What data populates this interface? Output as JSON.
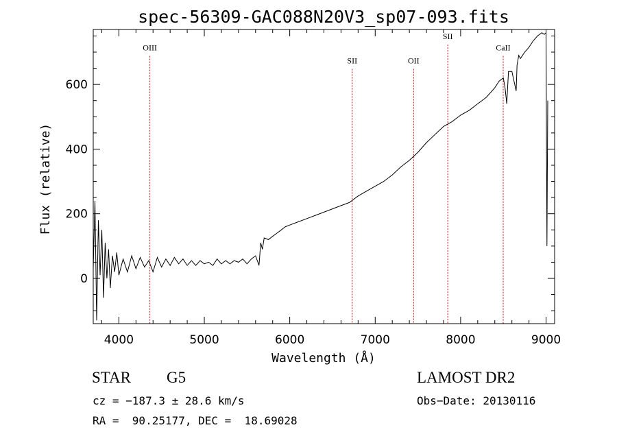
{
  "chart_data": {
    "type": "line",
    "title": "spec-56309-GAC088N20V3_sp07-093.fits",
    "xlabel": "Wavelength (Å)",
    "ylabel": "Flux (relative)",
    "xlim": [
      3700,
      9100
    ],
    "ylim": [
      -140,
      770
    ],
    "x_ticks": [
      4000,
      5000,
      6000,
      7000,
      8000,
      9000
    ],
    "y_ticks": [
      0,
      200,
      400,
      600
    ],
    "grid": false,
    "line_color": "#000000",
    "marker_color": "#cc0000",
    "spectral_lines": [
      {
        "name": "OIII",
        "wavelength": 4363,
        "label_y": 705
      },
      {
        "name": "SII",
        "wavelength": 6731,
        "label_y": 665
      },
      {
        "name": "OII",
        "wavelength": 7450,
        "label_y": 665
      },
      {
        "name": "SII",
        "wavelength": 7850,
        "label_y": 740
      },
      {
        "name": "CaII",
        "wavelength": 8498,
        "label_y": 705
      }
    ],
    "series": [
      {
        "x": [
          3700,
          3720,
          3740,
          3760,
          3780,
          3800,
          3820,
          3840,
          3860,
          3880,
          3900,
          3925,
          3950,
          3975,
          4000,
          4050,
          4100,
          4150,
          4200,
          4250,
          4300,
          4350,
          4400,
          4450,
          4500,
          4550,
          4600,
          4650,
          4700,
          4750,
          4800,
          4850,
          4900,
          4950,
          5000,
          5050,
          5100,
          5150,
          5200,
          5250,
          5300,
          5350,
          5400,
          5450,
          5500,
          5550,
          5600,
          5640,
          5660,
          5680,
          5700,
          5750,
          5800,
          5850,
          5900,
          5950,
          6000,
          6100,
          6200,
          6300,
          6400,
          6500,
          6600,
          6700,
          6800,
          6900,
          7000,
          7100,
          7200,
          7300,
          7400,
          7500,
          7600,
          7700,
          7800,
          7900,
          8000,
          8100,
          8200,
          8300,
          8400,
          8450,
          8500,
          8520,
          8540,
          8560,
          8600,
          8650,
          8660,
          8680,
          8700,
          8750,
          8800,
          8850,
          8900,
          8950,
          8980,
          9000,
          9010,
          9020
        ],
        "y": [
          30,
          240,
          -130,
          180,
          10,
          150,
          -60,
          110,
          0,
          90,
          -30,
          70,
          20,
          80,
          10,
          60,
          20,
          70,
          30,
          65,
          35,
          55,
          20,
          65,
          35,
          60,
          40,
          65,
          45,
          60,
          40,
          55,
          40,
          55,
          45,
          50,
          40,
          60,
          45,
          55,
          45,
          55,
          50,
          60,
          45,
          60,
          70,
          40,
          110,
          90,
          125,
          120,
          130,
          140,
          150,
          160,
          165,
          175,
          185,
          195,
          205,
          215,
          225,
          235,
          255,
          270,
          285,
          300,
          320,
          345,
          365,
          390,
          420,
          445,
          470,
          485,
          505,
          520,
          540,
          560,
          590,
          610,
          620,
          590,
          540,
          640,
          640,
          580,
          660,
          690,
          680,
          700,
          715,
          735,
          750,
          760,
          755,
          760,
          100,
          550
        ]
      }
    ]
  },
  "info": {
    "object_class": "STAR",
    "subclass": "G5",
    "survey": "LAMOST DR2",
    "cz": "cz = −187.3 ± 28.6 km/s",
    "obs_date": "Obs−Date: 20130116",
    "coords": "RA =  90.25177, DEC =  18.69028"
  }
}
